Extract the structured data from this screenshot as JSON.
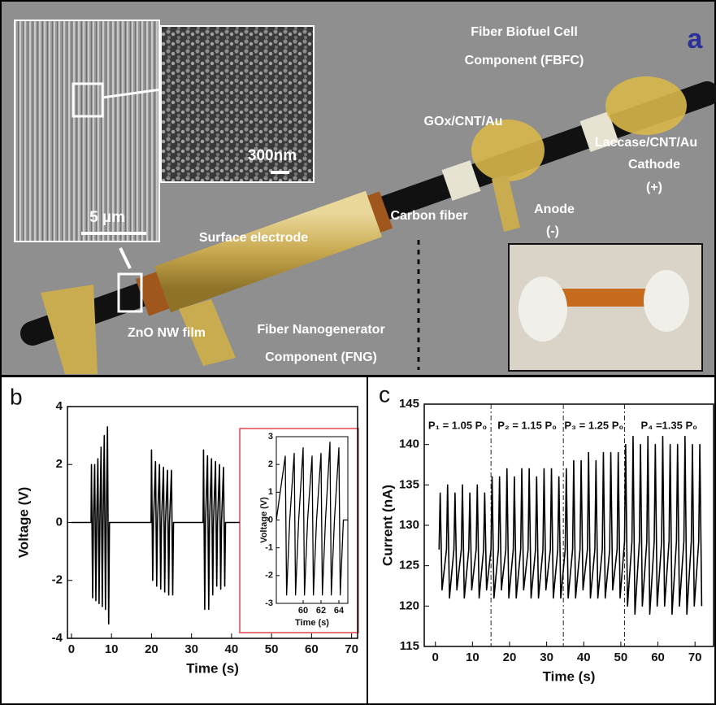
{
  "diagram": {
    "panel_label": "a",
    "title_lines": [
      "Fiber Biofuel Cell",
      "Component (FBFC)"
    ],
    "labels": [
      "GOx/CNT/Au",
      "Laccase/CNT/Au",
      "Cathode",
      "(+)",
      "Anode",
      "(-)",
      "Carbon fiber",
      "Surface electrode",
      "ZnO NW film",
      "Fiber Nanogenerator",
      "Component (FNG)"
    ],
    "scale_bars": [
      "5 µm",
      "300nm"
    ]
  },
  "chart_data": [
    {
      "type": "line",
      "panel_label": "b",
      "xlabel": "Time (s)",
      "ylabel": "Voltage (V)",
      "color": "#000000",
      "xlim": [
        -1,
        71.5
      ],
      "ylim": [
        -4,
        4
      ],
      "xticks": [
        0,
        10,
        20,
        30,
        40,
        50,
        60,
        70
      ],
      "yticks": [
        -4,
        -2,
        0,
        2,
        4
      ],
      "x": [
        0,
        4.9,
        5,
        5.3,
        5.5,
        5.8,
        6.1,
        6.3,
        6.6,
        6.9,
        7.1,
        7.4,
        7.7,
        7.9,
        8.2,
        8.5,
        8.7,
        9,
        9.3,
        9.5,
        19.9,
        20,
        20.3,
        20.5,
        21,
        21.3,
        21.5,
        22,
        22.3,
        22.5,
        23,
        23.3,
        23.5,
        24,
        24.3,
        24.5,
        25,
        25.3,
        25.5,
        32.9,
        33,
        33.3,
        33.5,
        34,
        34.3,
        34.5,
        35,
        35.3,
        35.5,
        36,
        36.3,
        36.5,
        37,
        37.3,
        37.5,
        38,
        38.3,
        38.5,
        42
      ],
      "values": [
        0,
        0,
        2.0,
        -2.6,
        0,
        2.0,
        -2.7,
        0,
        2.2,
        -2.8,
        0,
        2.6,
        -2.9,
        0,
        3.0,
        -3.0,
        0,
        3.3,
        -3.5,
        0,
        0,
        2.5,
        -2.0,
        0,
        2.1,
        -2.2,
        0,
        2.0,
        -2.3,
        0,
        1.9,
        -2.4,
        0,
        1.8,
        -2.5,
        0,
        1.8,
        -2.5,
        0,
        0,
        2.5,
        -3.0,
        0,
        2.3,
        -3.0,
        0,
        2.2,
        -2.5,
        0,
        2.1,
        -2.2,
        0,
        2.0,
        -2.3,
        0,
        1.9,
        -2.2,
        0,
        0
      ]
    },
    {
      "type": "line",
      "xlabel": "Time (s)",
      "ylabel": "Voltage (V)",
      "color": "#000000",
      "xlim": [
        57,
        65
      ],
      "ylim": [
        -3,
        3
      ],
      "xticks": [
        60,
        62,
        64
      ],
      "yticks": [
        -3,
        -2,
        -1,
        0,
        1,
        2,
        3
      ],
      "x": [
        57,
        58,
        58.15,
        58.5,
        59,
        59.15,
        59.5,
        60,
        60.15,
        60.5,
        61,
        61.15,
        61.5,
        62,
        62.15,
        62.5,
        63,
        63.15,
        63.5,
        64,
        64.15,
        64.5,
        65
      ],
      "values": [
        0,
        2.3,
        -2.7,
        0,
        2.4,
        -2.7,
        0,
        2.6,
        -2.7,
        0,
        2.3,
        -2.7,
        0,
        2.4,
        -2.7,
        0,
        2.8,
        -2.7,
        0,
        2.6,
        -2.7,
        0,
        0
      ]
    },
    {
      "type": "line",
      "panel_label": "c",
      "xlabel": "Time (s)",
      "ylabel": "Current (nA)",
      "color": "#000000",
      "xlim": [
        -3,
        75
      ],
      "ylim": [
        115,
        145
      ],
      "xticks": [
        0,
        10,
        20,
        30,
        40,
        50,
        60,
        70
      ],
      "yticks": [
        115,
        120,
        125,
        130,
        135,
        140,
        145
      ],
      "dividers": [
        15,
        34.5,
        51
      ],
      "annotations": [
        "P₁ = 1.05 P₀",
        "P₂ = 1.15 P₀",
        "P₃ = 1.25 P₀",
        "P₄ =1.35 P₀"
      ],
      "x": [
        1,
        1.3,
        1.8,
        3,
        3.3,
        3.8,
        5,
        5.3,
        5.8,
        7,
        7.3,
        7.8,
        9,
        9.3,
        9.8,
        11,
        11.3,
        11.8,
        13,
        13.3,
        13.8,
        15,
        15.3,
        15.8,
        17,
        17.3,
        17.8,
        19,
        19.3,
        19.8,
        21,
        21.3,
        21.8,
        23,
        23.3,
        23.8,
        25,
        25.3,
        25.8,
        27,
        27.3,
        27.8,
        29,
        29.3,
        29.8,
        31,
        31.3,
        31.8,
        33,
        33.3,
        33.8,
        35,
        35.3,
        35.8,
        37,
        37.3,
        37.8,
        39,
        39.3,
        39.8,
        41,
        41.3,
        41.8,
        43,
        43.3,
        43.8,
        45,
        45.3,
        45.8,
        47,
        47.3,
        47.8,
        49,
        49.3,
        49.8,
        51,
        51.3,
        51.8,
        53,
        53.3,
        53.8,
        55,
        55.3,
        55.8,
        57,
        57.3,
        57.8,
        59,
        59.3,
        59.8,
        61,
        61.3,
        61.8,
        63,
        63.3,
        63.8,
        65,
        65.3,
        65.8,
        67,
        67.3,
        67.8,
        69,
        69.3,
        69.8,
        71,
        71.3,
        71.8
      ],
      "values": [
        127,
        134,
        122,
        127,
        135,
        121,
        127,
        134,
        122,
        127,
        135,
        121,
        127,
        134,
        122,
        127,
        135,
        121,
        127,
        134,
        122,
        127,
        136,
        121,
        127,
        136,
        122,
        127,
        137,
        121,
        127,
        136,
        121,
        127,
        137,
        122,
        127,
        137,
        121,
        127,
        136,
        121,
        127,
        137,
        122,
        127,
        137,
        121,
        127,
        136,
        121,
        127,
        137,
        121,
        127,
        138,
        121,
        127,
        138,
        122,
        127,
        139,
        121,
        127,
        138,
        121,
        127,
        139,
        121,
        127,
        139,
        122,
        127,
        139,
        121,
        128,
        140,
        120,
        128,
        141,
        119,
        128,
        140,
        120,
        128,
        141,
        119,
        128,
        140,
        120,
        128,
        141,
        120,
        128,
        140,
        119,
        128,
        140,
        120,
        128,
        141,
        119,
        128,
        140,
        120,
        128,
        140,
        120
      ]
    }
  ]
}
